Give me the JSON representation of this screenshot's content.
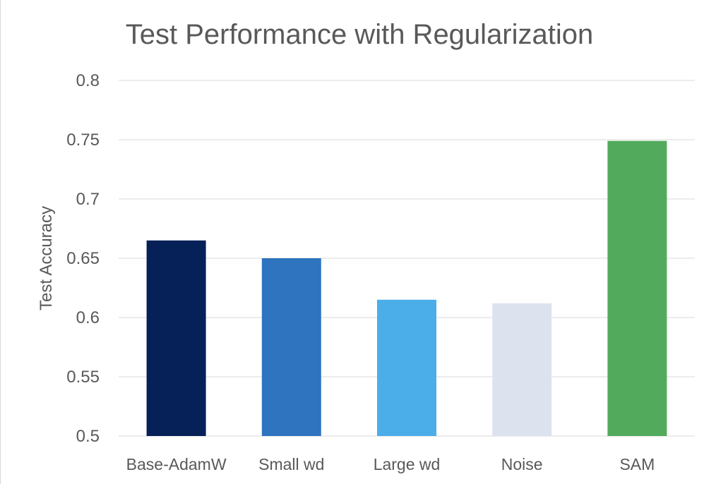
{
  "chart_data": {
    "type": "bar",
    "title": "Test Performance with Regularization",
    "xlabel": "",
    "ylabel": "Test Accuracy",
    "categories": [
      "Base-AdamW",
      "Small wd",
      "Large wd",
      "Noise",
      "SAM"
    ],
    "values": [
      0.665,
      0.65,
      0.615,
      0.612,
      0.749
    ],
    "colors": [
      "#062058",
      "#2e74bf",
      "#4baee9",
      "#dce3ef",
      "#52ab5c"
    ],
    "ylim": [
      0.5,
      0.8
    ],
    "yticks": [
      "0.5",
      "0.55",
      "0.6",
      "0.65",
      "0.7",
      "0.75",
      "0.8"
    ],
    "grid": true,
    "legend": "none"
  }
}
